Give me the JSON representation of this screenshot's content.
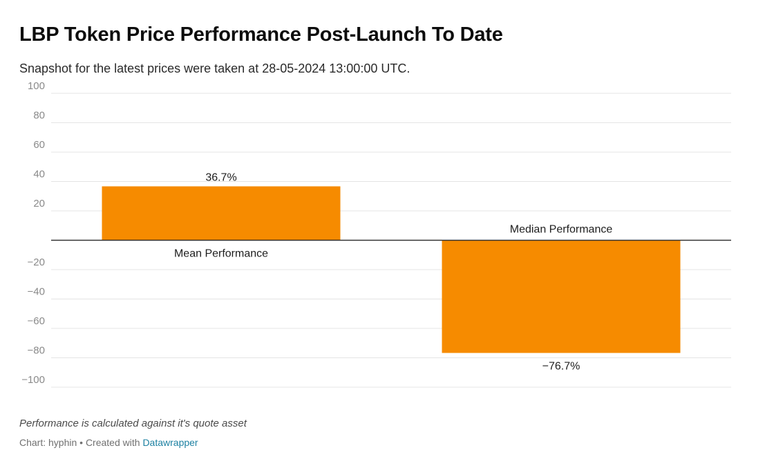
{
  "header": {
    "title": "LBP Token Price Performance Post-Launch To Date",
    "subtitle": "Snapshot for the latest prices were taken at 28-05-2024 13:00:00 UTC."
  },
  "footer": {
    "note": "Performance is calculated against it's quote asset",
    "credit_prefix": "Chart: hyphin • Created with",
    "credit_link": "Datawrapper"
  },
  "colors": {
    "bar": "#f68b00",
    "grid": "#e4e4e4",
    "baseline": "#333333",
    "tick_text": "#8a8a8a",
    "link": "#1d81a2"
  },
  "chart_data": {
    "type": "bar",
    "title": "LBP Token Price Performance Post-Launch To Date",
    "subtitle": "Snapshot for the latest prices were taken at 28-05-2024 13:00:00 UTC.",
    "xlabel": "",
    "ylabel": "",
    "categories": [
      "Mean Performance",
      "Median Performance"
    ],
    "values": [
      36.7,
      -76.7
    ],
    "value_labels": [
      "36.7%",
      "−76.7%"
    ],
    "ylim": [
      -100,
      100
    ],
    "yticks": [
      100,
      80,
      60,
      40,
      20,
      -20,
      -40,
      -60,
      -80,
      -100
    ],
    "ytick_labels": [
      "100",
      "80",
      "60",
      "40",
      "20",
      "−20",
      "−40",
      "−60",
      "−80",
      "−100"
    ],
    "grid": true,
    "legend": "none"
  }
}
